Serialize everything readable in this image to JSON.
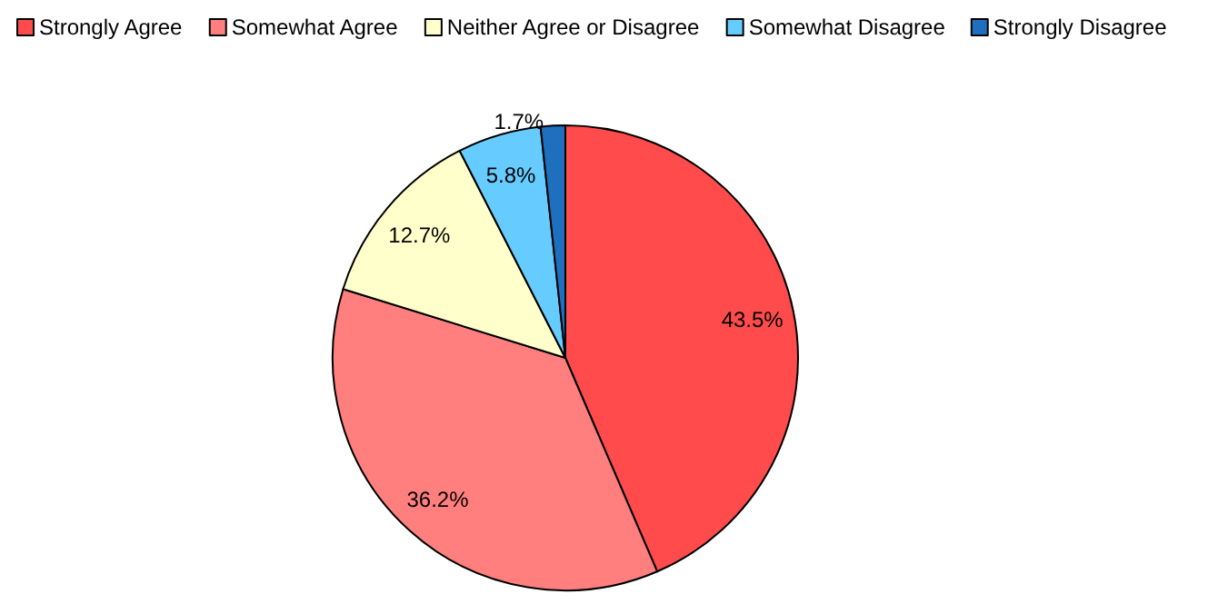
{
  "chart_data": {
    "type": "pie",
    "categories": [
      "Strongly Agree",
      "Somewhat Agree",
      "Neither Agree or Disagree",
      "Somewhat Disagree",
      "Strongly Disagree"
    ],
    "values": [
      43.5,
      36.2,
      12.7,
      5.8,
      1.7
    ],
    "value_labels": [
      "43.5%",
      "36.2%",
      "12.7%",
      "5.8%",
      "1.7%"
    ],
    "colors": [
      "#ff4b4b",
      "#ff7f7f",
      "#ffffcc",
      "#66ccff",
      "#1f6fbf"
    ],
    "legend": "top"
  }
}
